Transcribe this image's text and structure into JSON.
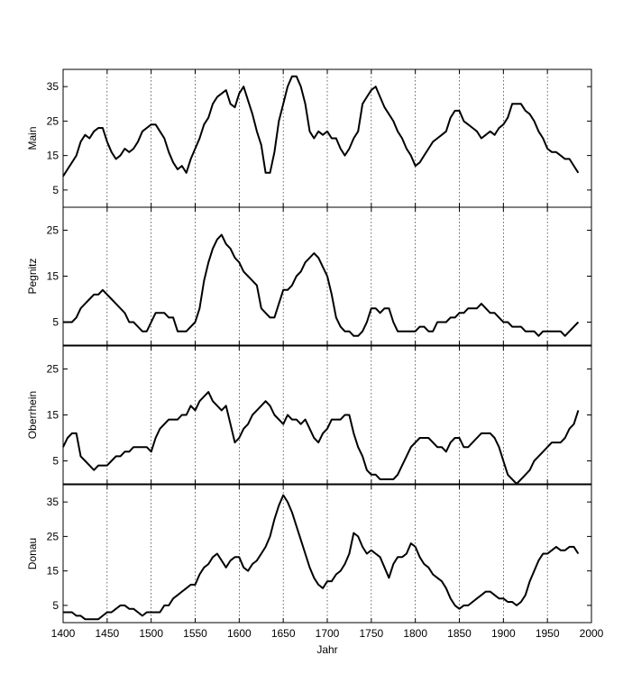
{
  "chart_data": {
    "type": "line",
    "xlabel": "Jahr",
    "xlim": [
      1400,
      2000
    ],
    "xticks": [
      1400,
      1450,
      1500,
      1550,
      1600,
      1650,
      1700,
      1750,
      1800,
      1850,
      1900,
      1950,
      2000
    ],
    "grid": "vertical dotted at x ticks",
    "panels": [
      {
        "ylabel": "Main",
        "ylim": [
          0,
          40
        ],
        "yticks": [
          5,
          15,
          25,
          35
        ],
        "x": [
          1400,
          1405,
          1410,
          1415,
          1420,
          1425,
          1430,
          1435,
          1440,
          1445,
          1450,
          1455,
          1460,
          1465,
          1470,
          1475,
          1480,
          1485,
          1490,
          1495,
          1500,
          1505,
          1510,
          1515,
          1520,
          1525,
          1530,
          1535,
          1540,
          1545,
          1550,
          1555,
          1560,
          1565,
          1570,
          1575,
          1580,
          1585,
          1590,
          1595,
          1600,
          1605,
          1610,
          1615,
          1620,
          1625,
          1630,
          1635,
          1640,
          1645,
          1650,
          1655,
          1660,
          1665,
          1670,
          1675,
          1680,
          1685,
          1690,
          1695,
          1700,
          1705,
          1710,
          1715,
          1720,
          1725,
          1730,
          1735,
          1740,
          1745,
          1750,
          1755,
          1760,
          1765,
          1770,
          1775,
          1780,
          1785,
          1790,
          1795,
          1800,
          1805,
          1810,
          1815,
          1820,
          1825,
          1830,
          1835,
          1840,
          1845,
          1850,
          1855,
          1860,
          1865,
          1870,
          1875,
          1880,
          1885,
          1890,
          1895,
          1900,
          1905,
          1910,
          1915,
          1920,
          1925,
          1930,
          1935,
          1940,
          1945,
          1950,
          1955,
          1960,
          1965,
          1970,
          1975,
          1980,
          1985
        ],
        "y": [
          9,
          11,
          13,
          15,
          19,
          21,
          20,
          22,
          23,
          23,
          19,
          16,
          14,
          15,
          17,
          16,
          17,
          19,
          22,
          23,
          24,
          24,
          22,
          20,
          16,
          13,
          11,
          12,
          10,
          14,
          17,
          20,
          24,
          26,
          30,
          32,
          33,
          34,
          30,
          29,
          33,
          35,
          31,
          27,
          22,
          18,
          10,
          10,
          16,
          25,
          30,
          35,
          38,
          38,
          35,
          30,
          22,
          20,
          22,
          21,
          22,
          20,
          20,
          17,
          15,
          17,
          20,
          22,
          30,
          32,
          34,
          35,
          32,
          29,
          27,
          25,
          22,
          20,
          17,
          15,
          12,
          13,
          15,
          17,
          19,
          20,
          21,
          22,
          26,
          28,
          28,
          25,
          24,
          23,
          22,
          20,
          21,
          22,
          21,
          23,
          24,
          26,
          30,
          30,
          30,
          28,
          27,
          25,
          22,
          20,
          17,
          16,
          16,
          15,
          14,
          14,
          12,
          10
        ]
      },
      {
        "ylabel": "Pegnitz",
        "ylim": [
          0,
          30
        ],
        "yticks": [
          5,
          15,
          25
        ],
        "x": [
          1400,
          1405,
          1410,
          1415,
          1420,
          1425,
          1430,
          1435,
          1440,
          1445,
          1450,
          1455,
          1460,
          1465,
          1470,
          1475,
          1480,
          1485,
          1490,
          1495,
          1500,
          1505,
          1510,
          1515,
          1520,
          1525,
          1530,
          1535,
          1540,
          1545,
          1550,
          1555,
          1560,
          1565,
          1570,
          1575,
          1580,
          1585,
          1590,
          1595,
          1600,
          1605,
          1610,
          1615,
          1620,
          1625,
          1630,
          1635,
          1640,
          1645,
          1650,
          1655,
          1660,
          1665,
          1670,
          1675,
          1680,
          1685,
          1690,
          1695,
          1700,
          1705,
          1710,
          1715,
          1720,
          1725,
          1730,
          1735,
          1740,
          1745,
          1750,
          1755,
          1760,
          1765,
          1770,
          1775,
          1780,
          1785,
          1790,
          1795,
          1800,
          1805,
          1810,
          1815,
          1820,
          1825,
          1830,
          1835,
          1840,
          1845,
          1850,
          1855,
          1860,
          1865,
          1870,
          1875,
          1880,
          1885,
          1890,
          1895,
          1900,
          1905,
          1910,
          1915,
          1920,
          1925,
          1930,
          1935,
          1940,
          1945,
          1950,
          1955,
          1960,
          1965,
          1970,
          1975,
          1980,
          1985
        ],
        "y": [
          5,
          5,
          5,
          6,
          8,
          9,
          10,
          11,
          11,
          12,
          11,
          10,
          9,
          8,
          7,
          5,
          5,
          4,
          3,
          3,
          5,
          7,
          7,
          7,
          6,
          6,
          3,
          3,
          3,
          4,
          5,
          8,
          14,
          18,
          21,
          23,
          24,
          22,
          21,
          19,
          18,
          16,
          15,
          14,
          13,
          8,
          7,
          6,
          6,
          9,
          12,
          12,
          13,
          15,
          16,
          18,
          19,
          20,
          19,
          17,
          15,
          11,
          6,
          4,
          3,
          3,
          2,
          2,
          3,
          5,
          8,
          8,
          7,
          8,
          8,
          5,
          3,
          3,
          3,
          3,
          3,
          4,
          4,
          3,
          3,
          5,
          5,
          5,
          6,
          6,
          7,
          7,
          8,
          8,
          8,
          9,
          8,
          7,
          7,
          6,
          5,
          5,
          4,
          4,
          4,
          3,
          3,
          3,
          2,
          3,
          3,
          3,
          3,
          3,
          2,
          3,
          4,
          5
        ]
      },
      {
        "ylabel": "Oberrhein",
        "ylim": [
          0,
          30
        ],
        "yticks": [
          5,
          15,
          25
        ],
        "x": [
          1400,
          1405,
          1410,
          1415,
          1420,
          1425,
          1430,
          1435,
          1440,
          1445,
          1450,
          1455,
          1460,
          1465,
          1470,
          1475,
          1480,
          1485,
          1490,
          1495,
          1500,
          1505,
          1510,
          1515,
          1520,
          1525,
          1530,
          1535,
          1540,
          1545,
          1550,
          1555,
          1560,
          1565,
          1570,
          1575,
          1580,
          1585,
          1590,
          1595,
          1600,
          1605,
          1610,
          1615,
          1620,
          1625,
          1630,
          1635,
          1640,
          1645,
          1650,
          1655,
          1660,
          1665,
          1670,
          1675,
          1680,
          1685,
          1690,
          1695,
          1700,
          1705,
          1710,
          1715,
          1720,
          1725,
          1730,
          1735,
          1740,
          1745,
          1750,
          1755,
          1760,
          1765,
          1770,
          1775,
          1780,
          1785,
          1790,
          1795,
          1800,
          1805,
          1810,
          1815,
          1820,
          1825,
          1830,
          1835,
          1840,
          1845,
          1850,
          1855,
          1860,
          1865,
          1870,
          1875,
          1880,
          1885,
          1890,
          1895,
          1900,
          1905,
          1910,
          1915,
          1920,
          1925,
          1930,
          1935,
          1940,
          1945,
          1950,
          1955,
          1960,
          1965,
          1970,
          1975,
          1980,
          1985
        ],
        "y": [
          8,
          10,
          11,
          11,
          6,
          5,
          4,
          3,
          4,
          4,
          4,
          5,
          6,
          6,
          7,
          7,
          8,
          8,
          8,
          8,
          7,
          10,
          12,
          13,
          14,
          14,
          14,
          15,
          15,
          17,
          16,
          18,
          19,
          20,
          18,
          17,
          16,
          17,
          13,
          9,
          10,
          12,
          13,
          15,
          16,
          17,
          18,
          17,
          15,
          14,
          13,
          15,
          14,
          14,
          13,
          14,
          12,
          10,
          9,
          11,
          12,
          14,
          14,
          14,
          15,
          15,
          11,
          8,
          6,
          3,
          2,
          2,
          1,
          1,
          1,
          1,
          2,
          4,
          6,
          8,
          9,
          10,
          10,
          10,
          9,
          8,
          8,
          7,
          9,
          10,
          10,
          8,
          8,
          9,
          10,
          11,
          11,
          11,
          10,
          8,
          5,
          2,
          1,
          0,
          1,
          2,
          3,
          5,
          6,
          7,
          8,
          9,
          9,
          9,
          10,
          12,
          13,
          16
        ]
      },
      {
        "ylabel": "Donau",
        "ylim": [
          0,
          40
        ],
        "yticks": [
          5,
          15,
          25,
          35
        ],
        "x": [
          1400,
          1405,
          1410,
          1415,
          1420,
          1425,
          1430,
          1435,
          1440,
          1445,
          1450,
          1455,
          1460,
          1465,
          1470,
          1475,
          1480,
          1485,
          1490,
          1495,
          1500,
          1505,
          1510,
          1515,
          1520,
          1525,
          1530,
          1535,
          1540,
          1545,
          1550,
          1555,
          1560,
          1565,
          1570,
          1575,
          1580,
          1585,
          1590,
          1595,
          1600,
          1605,
          1610,
          1615,
          1620,
          1625,
          1630,
          1635,
          1640,
          1645,
          1650,
          1655,
          1660,
          1665,
          1670,
          1675,
          1680,
          1685,
          1690,
          1695,
          1700,
          1705,
          1710,
          1715,
          1720,
          1725,
          1730,
          1735,
          1740,
          1745,
          1750,
          1755,
          1760,
          1765,
          1770,
          1775,
          1780,
          1785,
          1790,
          1795,
          1800,
          1805,
          1810,
          1815,
          1820,
          1825,
          1830,
          1835,
          1840,
          1845,
          1850,
          1855,
          1860,
          1865,
          1870,
          1875,
          1880,
          1885,
          1890,
          1895,
          1900,
          1905,
          1910,
          1915,
          1920,
          1925,
          1930,
          1935,
          1940,
          1945,
          1950,
          1955,
          1960,
          1965,
          1970,
          1975,
          1980,
          1985
        ],
        "y": [
          3,
          3,
          3,
          2,
          2,
          1,
          1,
          1,
          1,
          2,
          3,
          3,
          4,
          5,
          5,
          4,
          4,
          3,
          2,
          3,
          3,
          3,
          3,
          5,
          5,
          7,
          8,
          9,
          10,
          11,
          11,
          14,
          16,
          17,
          19,
          20,
          18,
          16,
          18,
          19,
          19,
          16,
          15,
          17,
          18,
          20,
          22,
          25,
          30,
          34,
          37,
          35,
          32,
          28,
          24,
          20,
          16,
          13,
          11,
          10,
          12,
          12,
          14,
          15,
          17,
          20,
          26,
          25,
          22,
          20,
          21,
          20,
          19,
          16,
          13,
          17,
          19,
          19,
          20,
          23,
          22,
          19,
          17,
          16,
          14,
          13,
          12,
          10,
          7,
          5,
          4,
          5,
          5,
          6,
          7,
          8,
          9,
          9,
          8,
          7,
          7,
          6,
          6,
          5,
          6,
          8,
          12,
          15,
          18,
          20,
          20,
          21,
          22,
          21,
          21,
          22,
          22,
          20
        ]
      }
    ]
  }
}
